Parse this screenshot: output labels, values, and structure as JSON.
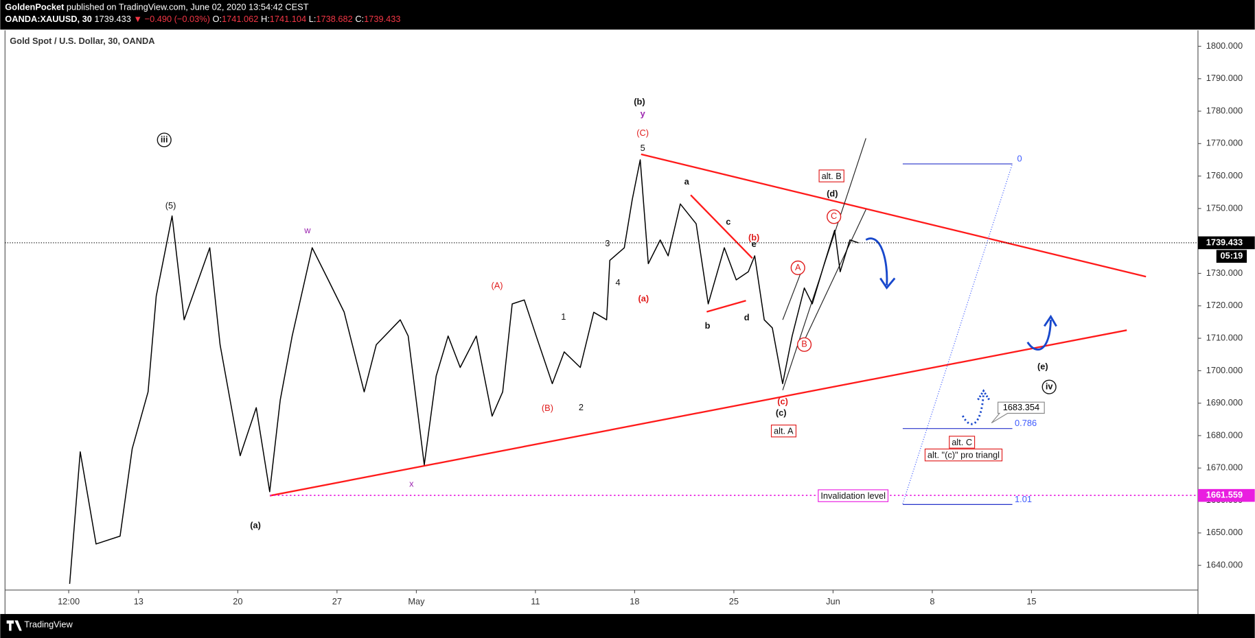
{
  "header": {
    "publisher": "GoldenPocket",
    "published": "published on TradingView.com, June 02, 2020 13:54:42 CEST",
    "symbol": "OANDA:XAUUSD, 30",
    "last": "1739.433",
    "change": "▼ −0.490 (−0.03%)",
    "ohlc": [
      {
        "label": "O:",
        "value": "1741.062"
      },
      {
        "label": "H:",
        "value": "1741.104"
      },
      {
        "label": "L:",
        "value": "1738.682"
      },
      {
        "label": "C:",
        "value": "1739.433"
      }
    ]
  },
  "chart_data": {
    "type": "line",
    "title": "Gold Spot / U.S. Dollar, 30, OANDA",
    "color": "#000000",
    "x": [
      -3.47,
      -2.94,
      -2.14,
      -0.93,
      -0.32,
      0.48,
      0.89,
      1.69,
      2.3,
      3.59,
      4.11,
      5.12,
      5.93,
      6.61,
      7.14,
      7.74,
      8.75,
      9.56,
      10.36,
      11.37,
      11.98,
      13.19,
      13.59,
      14.4,
      15.0,
      15.6,
      16.21,
      17.02,
      17.82,
      18.35,
      18.83,
      19.44,
      20.04,
      20.85,
      21.45,
      22.26,
      22.94,
      23.59,
      23.75,
      24.48,
      24.88,
      25.28,
      25.69,
      26.29,
      26.69,
      27.3,
      28.1,
      28.71,
      29.52,
      30.12,
      30.73,
      31.05,
      31.53,
      31.94,
      32.46,
      32.94,
      33.55,
      33.95,
      34.56,
      35.08,
      35.36,
      35.85,
      36.29
    ],
    "values": [
      1634.3,
      1675,
      1646.6,
      1649,
      1676,
      1693.5,
      1723,
      1747.7,
      1715.7,
      1737.9,
      1708,
      1673.8,
      1688.6,
      1662.7,
      1691,
      1710.7,
      1737.9,
      1728,
      1718.1,
      1693.5,
      1708,
      1715.7,
      1710.7,
      1671,
      1698.4,
      1710.7,
      1701,
      1710.7,
      1686,
      1693.5,
      1720.6,
      1721.8,
      1710.7,
      1696,
      1705.8,
      1701,
      1718,
      1715.7,
      1734,
      1737.9,
      1752.7,
      1765,
      1733,
      1740.3,
      1735.4,
      1751.4,
      1745.3,
      1720.6,
      1737.9,
      1728,
      1730.5,
      1735.4,
      1715.7,
      1713.2,
      1696,
      1710.7,
      1725.5,
      1720.6,
      1733,
      1743.3,
      1730.5,
      1740.3,
      1739.4
    ],
    "xlim": [
      -6.73,
      53.39
    ],
    "xticks": [
      {
        "value": -3.52,
        "label": "12:00"
      },
      {
        "value": 0,
        "label": "13"
      },
      {
        "value": 5,
        "label": "20"
      },
      {
        "value": 10,
        "label": "27"
      },
      {
        "value": 14,
        "label": "May"
      },
      {
        "value": 20,
        "label": "11"
      },
      {
        "value": 25,
        "label": "18"
      },
      {
        "value": 30,
        "label": "25"
      },
      {
        "value": 35,
        "label": "Jun"
      },
      {
        "value": 40,
        "label": "8"
      },
      {
        "value": 45,
        "label": "15"
      }
    ],
    "ylim": [
      1632.4,
      1804.9
    ],
    "yticks": [
      {
        "value": 1640,
        "label": "1640.000"
      },
      {
        "value": 1650,
        "label": "1650.000"
      },
      {
        "value": 1660,
        "label": "1660.000"
      },
      {
        "value": 1670,
        "label": "1670.000"
      },
      {
        "value": 1680,
        "label": "1680.000"
      },
      {
        "value": 1690,
        "label": "1690.000"
      },
      {
        "value": 1700,
        "label": "1700.000"
      },
      {
        "value": 1710,
        "label": "1710.000"
      },
      {
        "value": 1720,
        "label": "1720.000"
      },
      {
        "value": 1730,
        "label": "1730.000"
      },
      {
        "value": 1740,
        "label": "1740.000"
      },
      {
        "value": 1750,
        "label": "1750.000"
      },
      {
        "value": 1760,
        "label": "1760.000"
      },
      {
        "value": 1770,
        "label": "1770.000"
      },
      {
        "value": 1780,
        "label": "1780.000"
      },
      {
        "value": 1790,
        "label": "1790.000"
      },
      {
        "value": 1800,
        "label": "1800.000"
      }
    ],
    "current_price": 1739.433,
    "countdown": "05:19",
    "invalidation_price": 1661.559,
    "fib_levels": [
      0,
      0.786,
      1.01
    ],
    "callout_price": 1683.354,
    "annotations": [
      "iii",
      "(5)",
      "w",
      "(a)",
      "x",
      "(A)",
      "(B)",
      "1",
      "2",
      "3",
      "4",
      "5",
      "(C)",
      "y",
      "(b)",
      "(a)",
      "a",
      "b",
      "c",
      "d",
      "e",
      "(b)",
      "(c)",
      "(c)",
      "(d)",
      "A",
      "B",
      "C",
      "(e)",
      "iv",
      "alt. B",
      "alt. A",
      "alt. C",
      "alt. \"(c)\" pro triangl",
      "Invalidation level"
    ]
  },
  "footer": {
    "brand": "TradingView"
  }
}
